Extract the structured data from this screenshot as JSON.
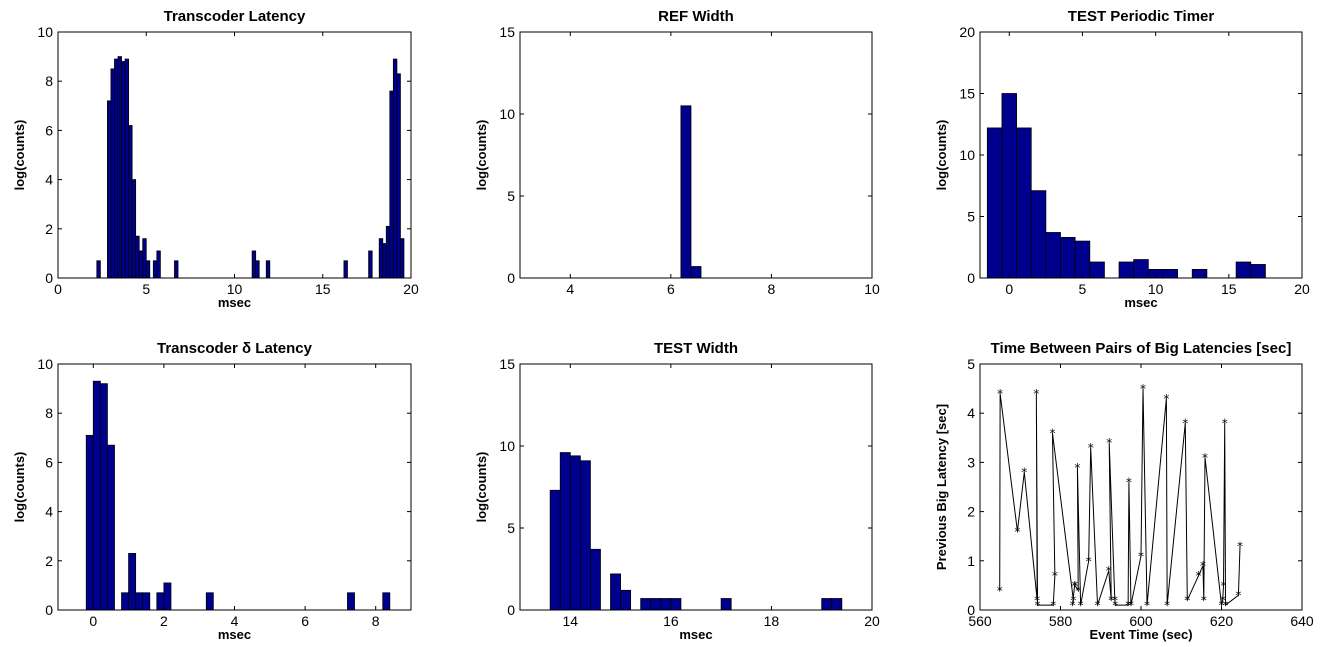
{
  "chart_data": [
    {
      "type": "bar",
      "title": "Transcoder Latency",
      "xlabel": "msec",
      "ylabel": "log(counts)",
      "xlim": [
        0,
        20
      ],
      "ylim": [
        0,
        10
      ],
      "xticks": [
        0,
        5,
        10,
        15,
        20
      ],
      "yticks": [
        0,
        2,
        4,
        6,
        8,
        10
      ],
      "bin_width": 0.2,
      "x": [
        2.3,
        2.5,
        2.7,
        2.9,
        3.1,
        3.3,
        3.5,
        3.7,
        3.9,
        4.1,
        4.3,
        4.5,
        4.7,
        4.9,
        5.1,
        5.3,
        5.5,
        5.7,
        5.9,
        6.1,
        6.3,
        6.5,
        6.7,
        6.9,
        7.1,
        7.3,
        7.5,
        7.7,
        7.9,
        8.1,
        8.3,
        8.5,
        8.7,
        8.9,
        9.1,
        9.3,
        9.5,
        9.7,
        9.9,
        10.1,
        10.3,
        10.5,
        10.7,
        10.9,
        11.1,
        11.3,
        11.5,
        11.7,
        11.9,
        12.1,
        12.3,
        12.5,
        12.7,
        12.9,
        13.1,
        13.3,
        13.5,
        13.7,
        13.9,
        14.1,
        14.3,
        14.5,
        14.7,
        14.9,
        15.1,
        15.3,
        15.5,
        15.7,
        15.9,
        16.1,
        16.3,
        16.5,
        16.7,
        16.9,
        17.1,
        17.3,
        17.5,
        17.7,
        17.9,
        18.1,
        18.3,
        18.5,
        18.7,
        18.9,
        19.1,
        19.3,
        19.5,
        19.7
      ],
      "values": [
        0.7,
        0,
        0,
        7.2,
        8.5,
        8.9,
        9.0,
        8.8,
        8.9,
        6.2,
        4.0,
        1.7,
        1.1,
        1.6,
        0.7,
        0,
        0.7,
        1.1,
        0,
        0,
        0,
        0,
        0.7,
        0,
        0,
        0,
        0,
        0,
        0,
        0,
        0,
        0,
        0,
        0,
        0,
        0,
        0,
        0,
        0,
        0,
        0,
        0,
        0,
        0,
        1.1,
        0.7,
        0,
        0,
        0.7,
        0,
        0,
        0,
        0,
        0,
        0,
        0,
        0,
        0,
        0,
        0,
        0,
        0,
        0,
        0,
        0,
        0,
        0,
        0,
        0,
        0,
        0.7,
        0,
        0,
        0,
        0,
        0,
        0,
        1.1,
        0,
        0,
        1.6,
        1.4,
        2.1,
        7.6,
        8.9,
        8.3,
        1.6,
        0
      ]
    },
    {
      "type": "bar",
      "title": "REF Width",
      "xlabel": "",
      "ylabel": "log(counts)",
      "xlim": [
        3,
        10
      ],
      "ylim": [
        0,
        15
      ],
      "xticks": [
        4,
        6,
        8,
        10
      ],
      "yticks": [
        0,
        5,
        10,
        15
      ],
      "bin_width": 0.2,
      "x": [
        3.1,
        3.3,
        3.5,
        3.7,
        3.9,
        4.1,
        4.3,
        4.5,
        4.7,
        4.9,
        5.1,
        5.3,
        5.5,
        5.7,
        5.9,
        6.1,
        6.3,
        6.5
      ],
      "values": [
        0,
        0,
        0,
        0,
        0,
        0,
        0,
        0,
        0,
        0,
        0,
        0,
        0,
        0,
        0,
        0,
        10.5,
        0.7
      ]
    },
    {
      "type": "bar",
      "title": "TEST Periodic Timer",
      "xlabel": "msec",
      "ylabel": "log(counts)",
      "xlim": [
        -2,
        20
      ],
      "ylim": [
        0,
        20
      ],
      "xticks": [
        0,
        5,
        10,
        15,
        20
      ],
      "yticks": [
        0,
        5,
        10,
        15,
        20
      ],
      "bin_width": 1.0,
      "x": [
        -1,
        0,
        1,
        2,
        3,
        4,
        5,
        6,
        7,
        8,
        9,
        10,
        11,
        12,
        13,
        14,
        15,
        16,
        17
      ],
      "values": [
        12.2,
        15.0,
        12.2,
        7.1,
        3.7,
        3.3,
        3.0,
        1.3,
        0,
        1.3,
        1.5,
        0.7,
        0.7,
        0,
        0.7,
        0,
        0,
        1.3,
        1.1
      ]
    },
    {
      "type": "bar",
      "title": "Transcoder δ Latency",
      "xlabel": "msec",
      "ylabel": "log(counts)",
      "xlim": [
        -1,
        9
      ],
      "ylim": [
        0,
        10
      ],
      "xticks": [
        0,
        2,
        4,
        6,
        8
      ],
      "yticks": [
        0,
        2,
        4,
        6,
        8,
        10
      ],
      "bin_width": 0.2,
      "x": [
        -0.1,
        0.1,
        0.3,
        0.5,
        0.7,
        0.9,
        1.1,
        1.3,
        1.5,
        1.7,
        1.9,
        2.1,
        2.3,
        2.5,
        2.7,
        2.9,
        3.1,
        3.3,
        3.5,
        3.7,
        3.9,
        4.1,
        4.3,
        4.5,
        4.7,
        4.9,
        5.1,
        5.3,
        5.5,
        5.7,
        5.9,
        6.1,
        6.3,
        6.5,
        6.7,
        6.9,
        7.1,
        7.3,
        7.5,
        7.7,
        7.9,
        8.1,
        8.3
      ],
      "values": [
        7.1,
        9.3,
        9.2,
        6.7,
        0,
        0.7,
        2.3,
        0.7,
        0.7,
        0,
        0.7,
        1.1,
        0,
        0,
        0,
        0,
        0,
        0.7,
        0,
        0,
        0,
        0,
        0,
        0,
        0,
        0,
        0,
        0,
        0,
        0,
        0,
        0,
        0,
        0,
        0,
        0,
        0,
        0.7,
        0,
        0,
        0,
        0,
        0.7
      ]
    },
    {
      "type": "bar",
      "title": "TEST Width",
      "xlabel": "msec",
      "ylabel": "log(counts)",
      "xlim": [
        13,
        20
      ],
      "ylim": [
        0,
        15
      ],
      "xticks": [
        14,
        16,
        18,
        20
      ],
      "yticks": [
        0,
        5,
        10,
        15
      ],
      "bin_width": 0.2,
      "x": [
        13.7,
        13.9,
        14.1,
        14.3,
        14.5,
        14.7,
        14.9,
        15.1,
        15.3,
        15.5,
        15.7,
        15.9,
        16.1,
        16.3,
        16.5,
        16.7,
        16.9,
        17.1,
        17.3,
        17.5,
        17.7,
        17.9,
        18.1,
        18.3,
        18.5,
        18.7,
        18.9,
        19.1,
        19.3
      ],
      "values": [
        7.3,
        9.6,
        9.4,
        9.1,
        3.7,
        0,
        2.2,
        1.2,
        0,
        0.7,
        0.7,
        0.7,
        0.7,
        0,
        0,
        0,
        0,
        0.7,
        0,
        0,
        0,
        0,
        0,
        0,
        0,
        0,
        0,
        0.7,
        0.7
      ]
    },
    {
      "type": "line",
      "title": "Time Between Pairs of Big Latencies [sec]",
      "xlabel": "Event Time (sec)",
      "ylabel": "Previous Big Latency [sec]",
      "xlim": [
        560,
        640
      ],
      "ylim": [
        0,
        5
      ],
      "xticks": [
        560,
        580,
        600,
        620,
        640
      ],
      "yticks": [
        0,
        1,
        2,
        3,
        4,
        5
      ],
      "marker": "*",
      "x": [
        564.9,
        565.0,
        569.3,
        571.0,
        574.2,
        574.0,
        574.3,
        578.2,
        578.6,
        578.0,
        583.2,
        583.0,
        583.5,
        583.6,
        584.4,
        584.2,
        585.0,
        587.0,
        587.5,
        589.2,
        592.0,
        592.6,
        592.1,
        593.5,
        593.6,
        596.8,
        597.0,
        597.5,
        600.0,
        600.5,
        601.5,
        606.3,
        606.5,
        611.0,
        611.5,
        614.3,
        615.4,
        615.6,
        615.9,
        620.0,
        620.3,
        620.5,
        620.8,
        621.0,
        624.2,
        624.6
      ],
      "y": [
        0.4,
        4.4,
        1.6,
        2.8,
        0.2,
        4.4,
        0.1,
        0.1,
        0.7,
        3.6,
        0.2,
        0.1,
        0.5,
        0.5,
        0.4,
        2.9,
        0.1,
        1.0,
        3.3,
        0.1,
        0.8,
        0.2,
        3.4,
        0.2,
        0.1,
        0.1,
        2.6,
        0.1,
        1.1,
        4.5,
        0.1,
        4.3,
        0.1,
        3.8,
        0.2,
        0.7,
        0.9,
        0.2,
        3.1,
        0.1,
        0.2,
        0.5,
        3.8,
        0.1,
        0.3,
        1.3
      ]
    }
  ]
}
